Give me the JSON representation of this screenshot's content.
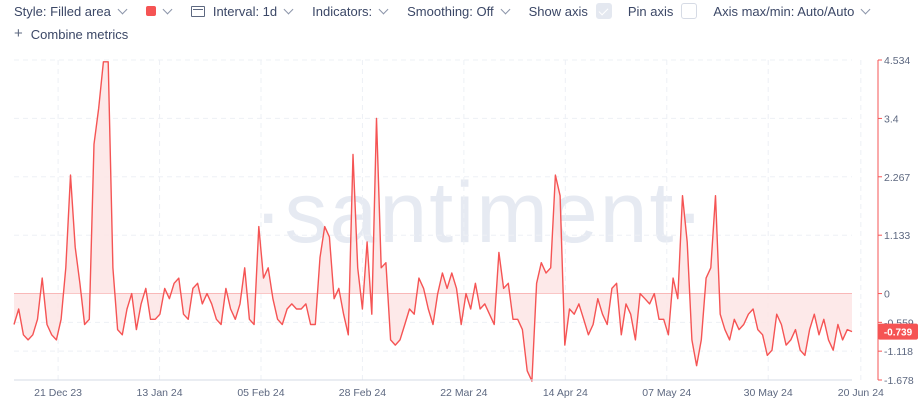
{
  "toolbar": {
    "style_label": "Style: Filled area",
    "color_swatch": "#f55454",
    "interval_label": "Interval: 1d",
    "indicators_label": "Indicators:",
    "smoothing_label": "Smoothing: Off",
    "show_axis_label": "Show axis",
    "show_axis_checked": true,
    "pin_axis_label": "Pin axis",
    "pin_axis_checked": false,
    "axis_range_label": "Axis max/min: Auto/Auto",
    "combine_label": "Combine metrics",
    "plus_glyph": "+"
  },
  "watermark": "·santiment·",
  "chart_data": {
    "type": "area",
    "line_color": "#f55454",
    "fill_color": "#fde5e5",
    "grid": true,
    "ylim": [
      -1.678,
      4.534
    ],
    "yticks": [
      "4.534",
      "3.4",
      "2.267",
      "1.133",
      "0",
      "-0.559",
      "-1.118",
      "-1.678"
    ],
    "ytick_values": [
      4.534,
      3.4,
      2.267,
      1.133,
      0,
      -0.559,
      -1.118,
      -1.678
    ],
    "xticks": [
      "21 Dec 23",
      "13 Jan 24",
      "05 Feb 24",
      "28 Feb 24",
      "22 Mar 24",
      "14 Apr 24",
      "07 May 24",
      "30 May 24",
      "20 Jun 24"
    ],
    "x_start": "2023-12-11",
    "x_end": "2024-06-18",
    "last_value_label": "-0.739",
    "values": [
      -0.6,
      -0.3,
      -0.8,
      -0.9,
      -0.8,
      -0.5,
      0.3,
      -0.6,
      -0.8,
      -0.9,
      -0.5,
      0.5,
      2.3,
      0.9,
      0.2,
      -0.6,
      -0.5,
      2.9,
      3.6,
      4.5,
      4.5,
      0.5,
      -0.7,
      -0.8,
      -0.3,
      0,
      -0.7,
      -0.2,
      0.1,
      -0.5,
      -0.5,
      -0.4,
      0.1,
      -0.1,
      0.2,
      0.3,
      -0.4,
      -0.5,
      0.1,
      0.2,
      -0.2,
      0,
      -0.2,
      -0.5,
      -0.6,
      0.1,
      -0.3,
      -0.5,
      -0.2,
      0.5,
      -0.5,
      -0.6,
      1.3,
      0.3,
      0.5,
      -0.1,
      -0.5,
      -0.6,
      -0.3,
      -0.2,
      -0.3,
      -0.3,
      -0.2,
      -0.6,
      -0.6,
      0.7,
      1.3,
      1.1,
      -0.1,
      0.1,
      -0.4,
      -0.8,
      2.7,
      0.5,
      -0.3,
      1,
      -0.4,
      3.4,
      0.5,
      0.6,
      -0.9,
      -1,
      -0.9,
      -0.6,
      -0.3,
      -0.4,
      0.3,
      0.1,
      -0.3,
      -0.6,
      0,
      0.4,
      0.1,
      0.4,
      0.1,
      -0.6,
      0,
      -0.3,
      0.2,
      -0.3,
      -0.2,
      -0.4,
      -0.6,
      0.8,
      0.1,
      0.2,
      -0.5,
      -0.5,
      -0.7,
      -1.5,
      -1.7,
      0.2,
      0.6,
      0.4,
      0.5,
      2.3,
      1.9,
      -1,
      -0.3,
      -0.4,
      -0.2,
      -0.5,
      -0.8,
      -0.6,
      -0.1,
      -0.4,
      -0.6,
      0.1,
      0.2,
      -0.8,
      -0.2,
      -0.4,
      -0.9,
      0,
      -0.1,
      -0.2,
      0,
      -0.5,
      -0.5,
      -0.8,
      0.3,
      -0.1,
      1.9,
      1,
      -0.9,
      -1.4,
      -0.9,
      0.3,
      0.5,
      1.9,
      -0.4,
      -0.7,
      -0.9,
      -0.5,
      -0.7,
      -0.6,
      -0.4,
      -0.3,
      -0.7,
      -0.8,
      -1.2,
      -1.1,
      -0.4,
      -0.6,
      -1.0,
      -0.9,
      -0.7,
      -1.1,
      -1.2,
      -0.7,
      -0.4,
      -0.8,
      -0.5,
      -0.9,
      -1.1,
      -0.6,
      -0.9,
      -0.7,
      -0.739
    ]
  }
}
